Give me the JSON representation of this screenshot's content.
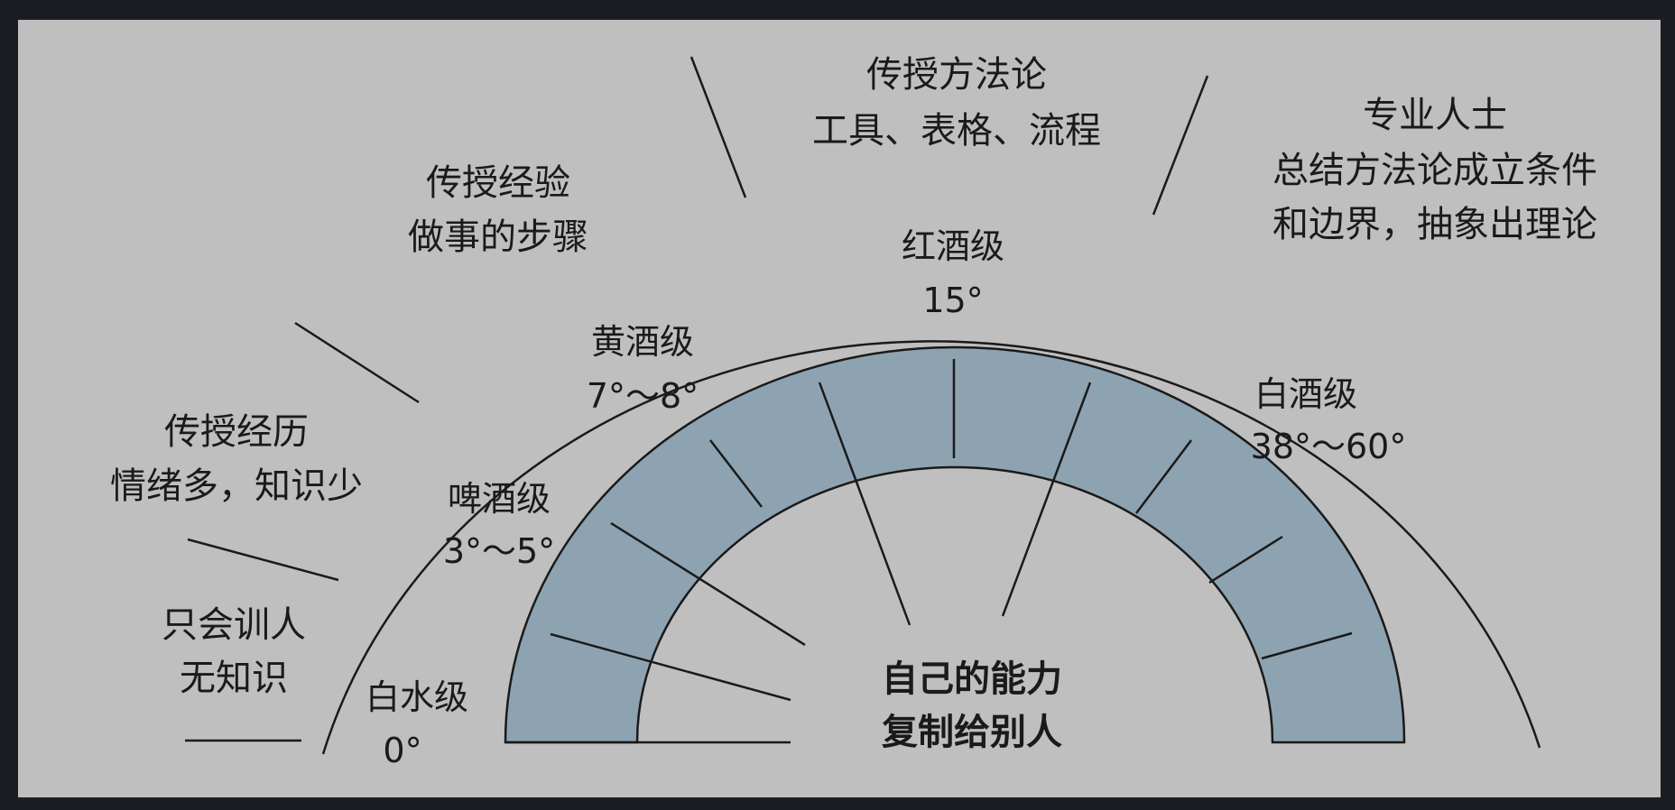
{
  "colors": {
    "background": "#1b1d22",
    "panel": "#bfbfbf",
    "band": "#8ea3b1",
    "line": "#1a1a1a"
  },
  "outer_levels": [
    {
      "id": "no-knowledge",
      "lines": [
        "只会训人",
        "无知识"
      ]
    },
    {
      "id": "experience",
      "lines": [
        "传授经历",
        "情绪多，知识少"
      ]
    },
    {
      "id": "practice",
      "lines": [
        "传授经验",
        "做事的步骤"
      ]
    },
    {
      "id": "methodology",
      "lines": [
        "传授方法论",
        "工具、表格、流程"
      ]
    },
    {
      "id": "professional",
      "lines": [
        "专业人士",
        "总结方法论成立条件",
        "和边界，抽象出理论"
      ]
    }
  ],
  "inner_levels": [
    {
      "id": "water",
      "name": "白水级",
      "degree": "0°"
    },
    {
      "id": "beer",
      "name": "啤酒级",
      "degree": "3°～5°"
    },
    {
      "id": "yellow-wine",
      "name": "黄酒级",
      "degree": "7°～8°"
    },
    {
      "id": "red-wine",
      "name": "红酒级",
      "degree": "15°"
    },
    {
      "id": "liquor",
      "name": "白酒级",
      "degree": "38°～60°"
    }
  ],
  "center": {
    "lines": [
      "自己的能力",
      "复制给别人"
    ]
  }
}
